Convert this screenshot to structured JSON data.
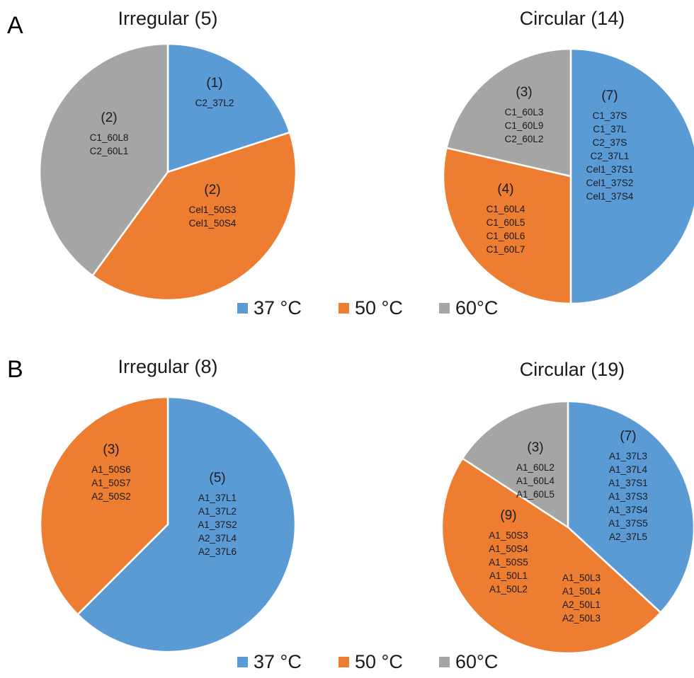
{
  "colors": {
    "t37": "#5b9bd5",
    "t50": "#ed7d31",
    "t60": "#a5a5a5"
  },
  "panels": [
    {
      "letter": "A",
      "legend": [
        "37 °C",
        "50 °C",
        "60°C"
      ]
    },
    {
      "letter": "B",
      "legend": [
        "37 °C",
        "50 °C",
        "60°C"
      ]
    }
  ],
  "chart_data": [
    {
      "type": "pie",
      "panel": "A",
      "title": "Irregular (5)",
      "categories": [
        "37 °C",
        "50 °C",
        "60°C"
      ],
      "values": [
        1,
        2,
        2
      ],
      "slices": [
        {
          "category": "37 °C",
          "count": "(1)",
          "items": [
            "C2_37L2"
          ]
        },
        {
          "category": "50 °C",
          "count": "(2)",
          "items": [
            "Cel1_50S3",
            "Cel1_50S4"
          ]
        },
        {
          "category": "60°C",
          "count": "(2)",
          "items": [
            "C1_60L8",
            "C2_60L1"
          ]
        }
      ]
    },
    {
      "type": "pie",
      "panel": "A",
      "title": "Circular (14)",
      "categories": [
        "37 °C",
        "50 °C",
        "60°C"
      ],
      "values": [
        7,
        4,
        3
      ],
      "slices": [
        {
          "category": "37 °C",
          "count": "(7)",
          "items": [
            "C1_37S",
            "C1_37L",
            "C2_37S",
            "C2_37L1",
            "Cel1_37S1",
            "Cel1_37S2",
            "Cel1_37S4"
          ]
        },
        {
          "category": "50 °C",
          "count": "(4)",
          "items": [
            "C1_60L4",
            "C1_60L5",
            "C1_60L6",
            "C1_60L7"
          ]
        },
        {
          "category": "60°C",
          "count": "(3)",
          "items": [
            "C1_60L3",
            "C1_60L9",
            "C2_60L2"
          ]
        }
      ]
    },
    {
      "type": "pie",
      "panel": "B",
      "title": "Irregular (8)",
      "categories": [
        "37 °C",
        "50 °C"
      ],
      "values": [
        5,
        3
      ],
      "slices": [
        {
          "category": "37 °C",
          "count": "(5)",
          "items": [
            "A1_37L1",
            "A1_37L2",
            "A1_37S2",
            "A2_37L4",
            "A2_37L6"
          ]
        },
        {
          "category": "50 °C",
          "count": "(3)",
          "items": [
            "A1_50S6",
            "A1_50S7",
            "A2_50S2"
          ]
        }
      ]
    },
    {
      "type": "pie",
      "panel": "B",
      "title": "Circular (19)",
      "categories": [
        "37 °C",
        "50 °C",
        "60°C"
      ],
      "values": [
        7,
        9,
        3
      ],
      "slices": [
        {
          "category": "37 °C",
          "count": "(7)",
          "items": [
            "A1_37L3",
            "A1_37L4",
            "A1_37S1",
            "A1_37S3",
            "A1_37S4",
            "A1_37S5",
            "A2_37L5"
          ]
        },
        {
          "category": "50 °C",
          "count": "(9)",
          "items": [
            "A1_50S3",
            "A1_50S4",
            "A1_50S5",
            "A1_50L1",
            "A1_50L2"
          ],
          "items_secondary": [
            "A1_50L3",
            "A1_50L4",
            "A2_50L1",
            "A2_50L3"
          ]
        },
        {
          "category": "60°C",
          "count": "(3)",
          "items": [
            "A1_60L2",
            "A1_60L4",
            "A1_60L5"
          ]
        }
      ]
    }
  ]
}
